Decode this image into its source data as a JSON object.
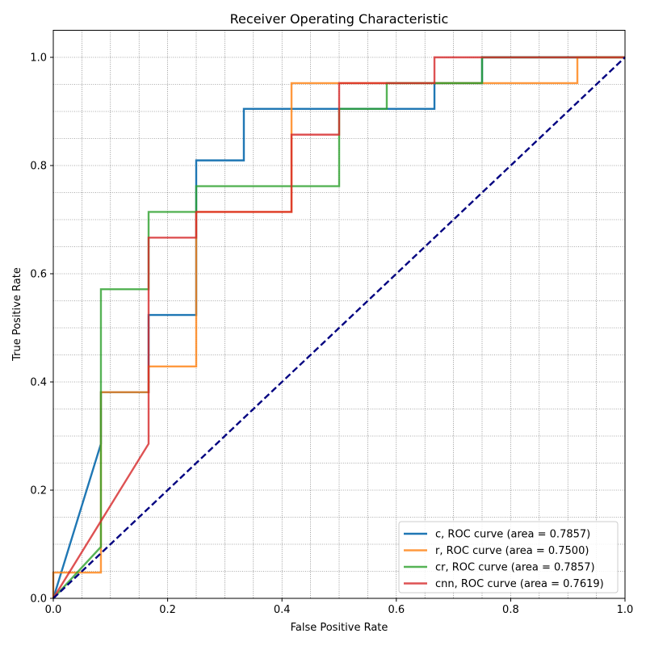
{
  "chart_data": {
    "type": "line",
    "title": "Receiver Operating Characteristic",
    "xlabel": "False Positive Rate",
    "ylabel": "True Positive Rate",
    "xlim": [
      0.0,
      1.0
    ],
    "ylim": [
      0.0,
      1.05
    ],
    "xticks": [
      0.0,
      0.2,
      0.4,
      0.6,
      0.8,
      1.0
    ],
    "yticks": [
      0.0,
      0.2,
      0.4,
      0.6,
      0.8,
      1.0
    ],
    "xtick_labels": [
      "0.0",
      "0.2",
      "0.4",
      "0.6",
      "0.8",
      "1.0"
    ],
    "ytick_labels": [
      "0.0",
      "0.2",
      "0.4",
      "0.6",
      "0.8",
      "1.0"
    ],
    "grid": true,
    "legend_position": "bottom-right",
    "series": [
      {
        "name": "c, ROC curve (area = 0.7857)",
        "color": "#1f77b4",
        "x": [
          0.0,
          0.0833,
          0.0833,
          0.1667,
          0.1667,
          0.25,
          0.25,
          0.3333,
          0.3333,
          0.6667,
          0.6667,
          0.75,
          0.75,
          1.0
        ],
        "y": [
          0.0,
          0.2857,
          0.381,
          0.381,
          0.5238,
          0.5238,
          0.8095,
          0.8095,
          0.9048,
          0.9048,
          0.9524,
          0.9524,
          1.0,
          1.0
        ]
      },
      {
        "name": "r, ROC curve (area = 0.7500)",
        "color": "#ff7f0e",
        "x": [
          0.0,
          0.0,
          0.0833,
          0.0833,
          0.1667,
          0.1667,
          0.25,
          0.25,
          0.4167,
          0.4167,
          0.9167,
          0.9167,
          1.0
        ],
        "y": [
          0.0,
          0.0476,
          0.0476,
          0.381,
          0.381,
          0.4286,
          0.4286,
          0.7143,
          0.7143,
          0.9524,
          0.9524,
          1.0,
          1.0
        ]
      },
      {
        "name": "cr, ROC curve (area = 0.7857)",
        "color": "#2ca02c",
        "x": [
          0.0,
          0.0833,
          0.0833,
          0.1667,
          0.1667,
          0.25,
          0.25,
          0.5,
          0.5,
          0.5833,
          0.5833,
          0.75,
          0.75,
          1.0
        ],
        "y": [
          0.0,
          0.0952,
          0.5714,
          0.5714,
          0.7143,
          0.7143,
          0.7619,
          0.7619,
          0.9048,
          0.9048,
          0.9524,
          0.9524,
          1.0,
          1.0
        ]
      },
      {
        "name": "cnn, ROC curve (area = 0.7619)",
        "color": "#d62728",
        "x": [
          0.0,
          0.1667,
          0.1667,
          0.25,
          0.25,
          0.4167,
          0.4167,
          0.5,
          0.5,
          0.6667,
          0.6667,
          1.0
        ],
        "y": [
          0.0,
          0.2857,
          0.6667,
          0.6667,
          0.7143,
          0.7143,
          0.8571,
          0.8571,
          0.9524,
          0.9524,
          1.0,
          1.0
        ]
      }
    ],
    "reference_line": {
      "color": "#000080",
      "x": [
        0.0,
        1.0
      ],
      "y": [
        0.0,
        1.0
      ]
    }
  }
}
